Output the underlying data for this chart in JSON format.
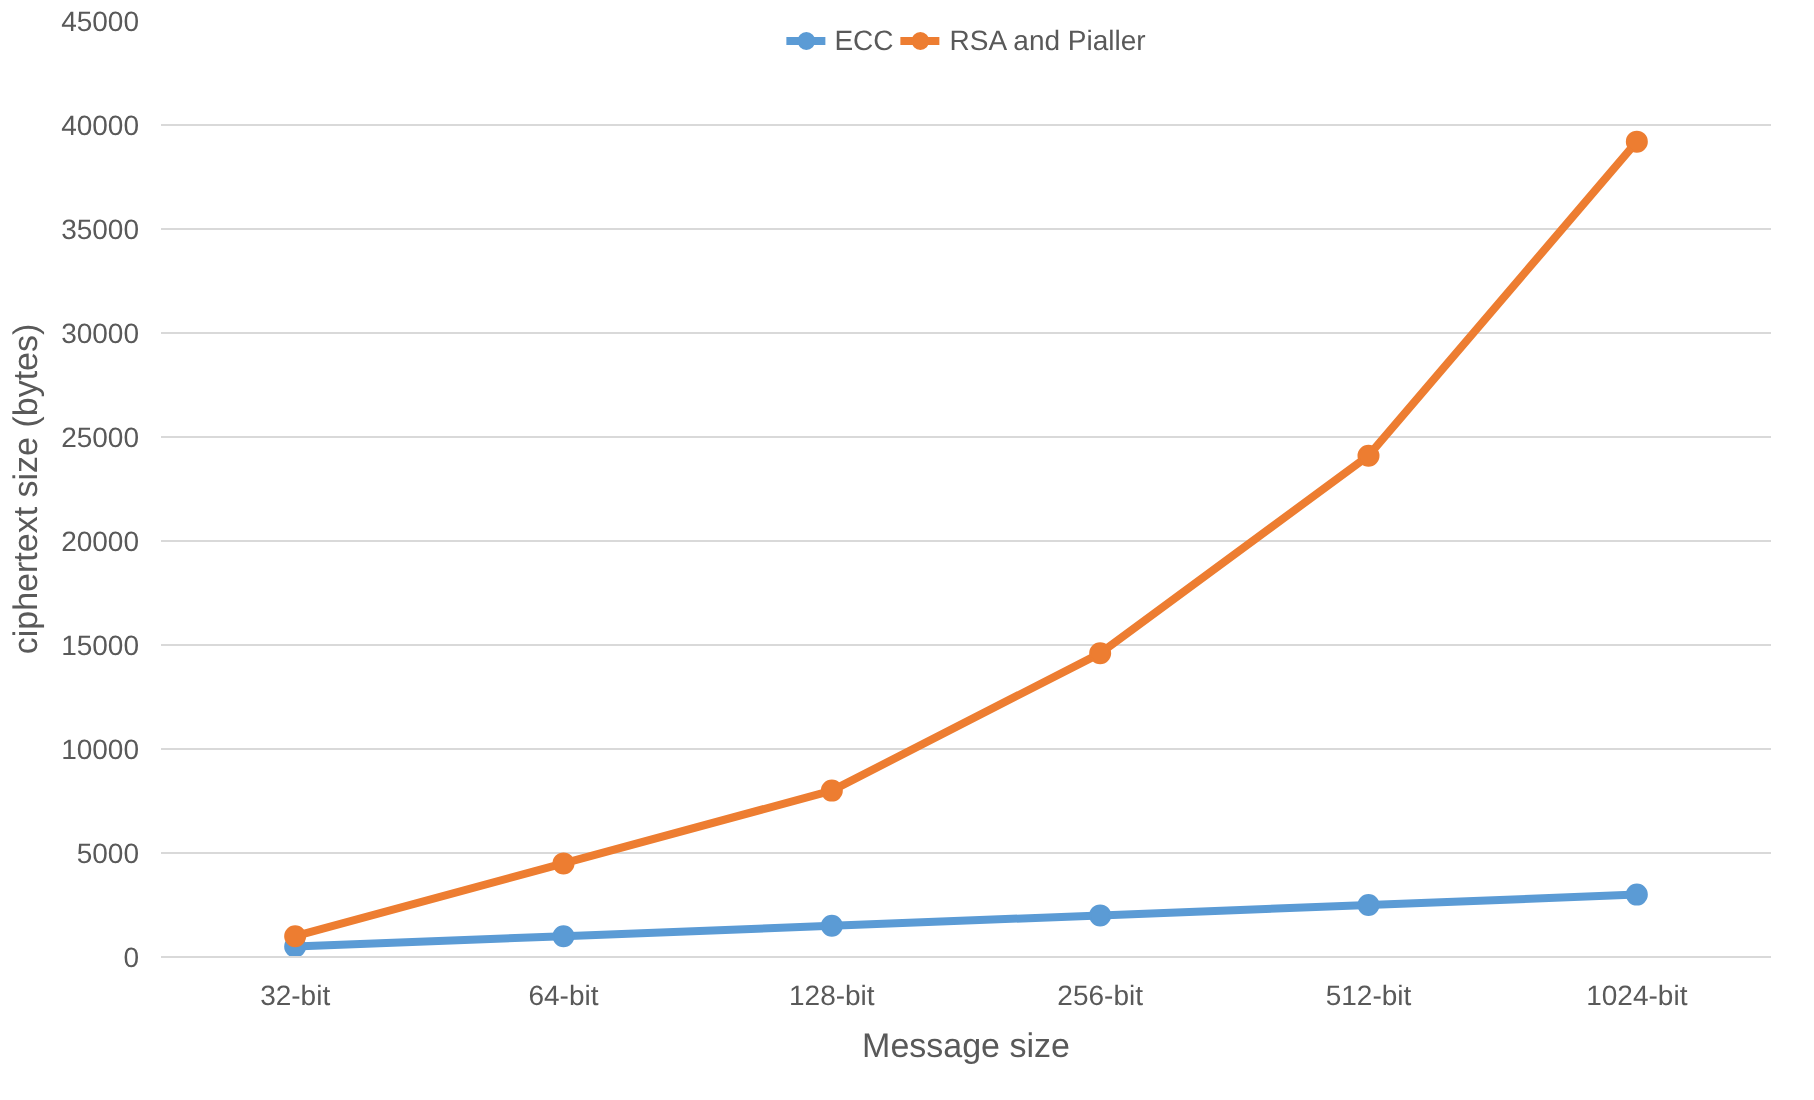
{
  "chart_data": {
    "type": "line",
    "xlabel": "Message size",
    "ylabel": "ciphertext size (bytes)",
    "categories": [
      "32-bit",
      "64-bit",
      "128-bit",
      "256-bit",
      "512-bit",
      "1024-bit"
    ],
    "series": [
      {
        "name": "ECC",
        "color": "#5b9bd5",
        "values": [
          500,
          1000,
          1500,
          2000,
          2500,
          3000
        ]
      },
      {
        "name": "RSA and Pialler",
        "color": "#ed7d31",
        "values": [
          1000,
          4500,
          8000,
          14600,
          24100,
          39200
        ]
      }
    ],
    "ylim": [
      0,
      45000
    ],
    "yticks": [
      0,
      5000,
      10000,
      15000,
      20000,
      25000,
      30000,
      35000,
      40000,
      45000
    ],
    "grid": "y",
    "legend": "top",
    "marker": "circle",
    "line_style": "solid"
  }
}
